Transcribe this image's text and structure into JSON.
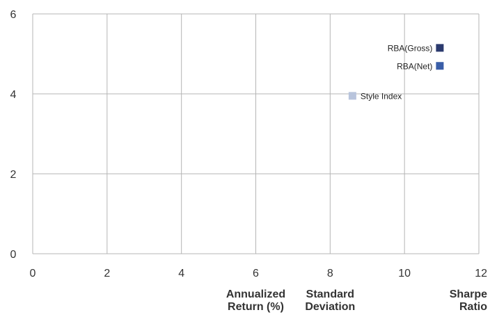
{
  "chart_data": {
    "type": "scatter",
    "title": "",
    "xlim": [
      0,
      12
    ],
    "ylim": [
      0,
      6
    ],
    "x_ticks": [
      "0",
      "2",
      "4",
      "6",
      "8",
      "10",
      "12"
    ],
    "y_ticks": [
      "0",
      "2",
      "4",
      "6"
    ],
    "grid": true,
    "axis_captions": [
      {
        "lines": [
          "Annualized",
          "Return (%)"
        ],
        "x": 6
      },
      {
        "lines": [
          "Standard",
          "Deviation"
        ],
        "x": 8
      },
      {
        "lines": [
          "Sharpe",
          "Ratio"
        ],
        "x": 12
      }
    ],
    "series": [
      {
        "name": "RBA(Gross)",
        "color": "#2b3a6e",
        "points": [
          {
            "x": 10.95,
            "y": 5.15
          }
        ]
      },
      {
        "name": "RBA(Net)",
        "color": "#3a5ea8",
        "points": [
          {
            "x": 10.95,
            "y": 4.7
          }
        ]
      },
      {
        "name": "Style Index",
        "color": "#b8c4dc",
        "points": [
          {
            "x": 8.6,
            "y": 3.95
          }
        ]
      }
    ]
  }
}
